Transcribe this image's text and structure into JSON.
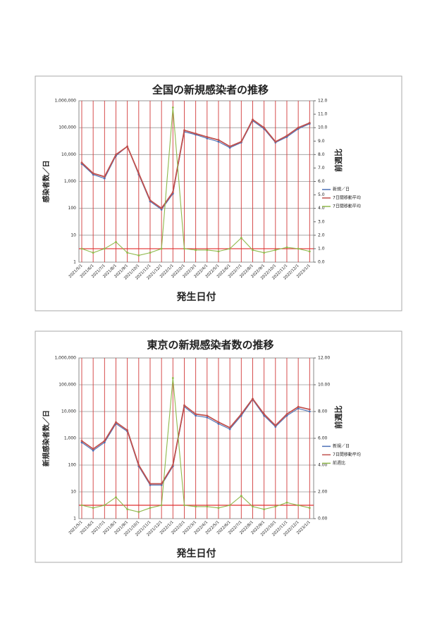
{
  "chart_data": [
    {
      "type": "line",
      "title": "全国の新規感染者の推移",
      "x_label": "発生日付",
      "y_label": "感染者数／日",
      "y2_label": "前週比",
      "categories": [
        "2021/5/1",
        "2021/6/1",
        "2021/7/1",
        "2021/8/1",
        "2021/9/1",
        "2021/10/1",
        "2021/11/1",
        "2021/12/1",
        "2022/1/1",
        "2022/2/1",
        "2022/3/1",
        "2022/4/1",
        "2022/5/1",
        "2022/6/1",
        "2022/7/1",
        "2022/8/1",
        "2022/9/1",
        "2022/10/1",
        "2022/11/1",
        "2022/12/1",
        "2023/1/1"
      ],
      "log_y": true,
      "ylim": [
        1,
        1000000
      ],
      "yticks": [
        1,
        10,
        100,
        {
          "value": 1000,
          "label": "1,000"
        },
        {
          "value": 10000,
          "label": "10,000"
        },
        {
          "value": 100000,
          "label": "100,000"
        },
        {
          "value": 1000000,
          "label": "1,000,000"
        }
      ],
      "y2lim": [
        0,
        12
      ],
      "y2ticks": [
        {
          "value": 0,
          "label": "0.0"
        },
        {
          "value": 1,
          "label": "1.0"
        },
        {
          "value": 2,
          "label": "2.0"
        },
        {
          "value": 3,
          "label": "3.0"
        },
        {
          "value": 4,
          "label": "4.0"
        },
        {
          "value": 5,
          "label": "5.0"
        },
        {
          "value": 6,
          "label": "6.0"
        },
        {
          "value": 7,
          "label": "7.0"
        },
        {
          "value": 8,
          "label": "8.0"
        },
        {
          "value": 9,
          "label": "9.0"
        },
        {
          "value": 10,
          "label": "10.0"
        },
        {
          "value": 11,
          "label": "11.0"
        },
        {
          "value": 12,
          "label": "12.0"
        }
      ],
      "y2_refline": 1,
      "refline_color": "#e03030",
      "grid": true,
      "series": [
        {
          "name": "新規／日",
          "color": "#4a6fb5",
          "values": [
            4500,
            1800,
            1300,
            9000,
            20000,
            1800,
            180,
            90,
            350,
            70000,
            55000,
            40000,
            30000,
            18000,
            28000,
            180000,
            90000,
            28000,
            45000,
            90000,
            140000
          ]
        },
        {
          "name": "7日間移動平均",
          "color": "#c0504d",
          "values": [
            5000,
            2000,
            1500,
            10000,
            20000,
            2000,
            200,
            100,
            400,
            80000,
            60000,
            45000,
            35000,
            20000,
            30000,
            200000,
            100000,
            30000,
            50000,
            100000,
            150000
          ]
        },
        {
          "name": "7日間移動平均",
          "color": "#8fb84a",
          "axis": "y2",
          "values": [
            1.0,
            0.7,
            1.0,
            1.5,
            0.7,
            0.5,
            0.7,
            1.0,
            11.5,
            1.0,
            0.9,
            0.9,
            0.8,
            1.0,
            1.8,
            0.9,
            0.7,
            0.9,
            1.1,
            1.0,
            0.8
          ]
        }
      ]
    },
    {
      "type": "line",
      "title": "東京の新規感染者数の推移",
      "x_label": "発生日付",
      "y_label": "新規感染者数／日",
      "y2_label": "前週比",
      "categories": [
        "2021/5/1",
        "2021/6/1",
        "2021/7/1",
        "2021/8/1",
        "2021/9/1",
        "2021/10/1",
        "2021/11/1",
        "2021/12/1",
        "2022/1/1",
        "2022/2/1",
        "2022/3/1",
        "2022/4/1",
        "2022/5/1",
        "2022/6/1",
        "2022/7/1",
        "2022/8/1",
        "2022/9/1",
        "2022/10/1",
        "2022/11/1",
        "2022/12/1",
        "2023/1/1"
      ],
      "log_y": true,
      "ylim": [
        1,
        1000000
      ],
      "yticks": [
        1,
        10,
        100,
        {
          "value": 1000,
          "label": "1,000"
        },
        {
          "value": 10000,
          "label": "10,000"
        },
        {
          "value": 100000,
          "label": "100,000"
        },
        {
          "value": 1000000,
          "label": "1,000,000"
        }
      ],
      "y2lim": [
        0,
        12
      ],
      "y2ticks": [
        {
          "value": 0,
          "label": "0.00"
        },
        {
          "value": 2,
          "label": "2.00"
        },
        {
          "value": 4,
          "label": "4.00"
        },
        {
          "value": 6,
          "label": "6.00"
        },
        {
          "value": 8,
          "label": "8.00"
        },
        {
          "value": 10,
          "label": "10.00"
        },
        {
          "value": 12,
          "label": "12.00"
        }
      ],
      "y2_refline": 1,
      "refline_color": "#e03030",
      "grid": true,
      "series": [
        {
          "name": "新規／日",
          "color": "#4a6fb5",
          "values": [
            700,
            350,
            700,
            3500,
            1800,
            90,
            18,
            18,
            90,
            15000,
            7000,
            6000,
            3500,
            2200,
            7000,
            28000,
            7000,
            2700,
            7000,
            13000,
            10000
          ]
        },
        {
          "name": "7日間移動平均",
          "color": "#c0504d",
          "values": [
            800,
            400,
            800,
            4000,
            2000,
            100,
            20,
            20,
            100,
            17000,
            8000,
            7000,
            4000,
            2500,
            8000,
            30000,
            8000,
            3000,
            8000,
            15000,
            12000
          ]
        },
        {
          "name": "前週比",
          "color": "#8fb84a",
          "axis": "y2",
          "values": [
            1.0,
            0.8,
            1.0,
            1.6,
            0.7,
            0.5,
            0.8,
            1.0,
            10.5,
            1.0,
            0.9,
            0.9,
            0.8,
            1.0,
            1.7,
            0.9,
            0.7,
            0.9,
            1.2,
            1.0,
            0.8
          ]
        }
      ]
    }
  ]
}
